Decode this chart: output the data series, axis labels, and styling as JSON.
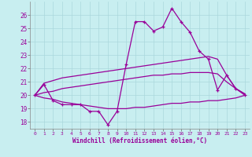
{
  "xlabel": "Windchill (Refroidissement éolien,°C)",
  "background_color": "#c8eef0",
  "line_color": "#990099",
  "grid_color": "#aad8dc",
  "x_hours": [
    0,
    1,
    2,
    3,
    4,
    5,
    6,
    7,
    8,
    9,
    10,
    11,
    12,
    13,
    14,
    15,
    16,
    17,
    18,
    19,
    20,
    21,
    22,
    23
  ],
  "windchill": [
    20.0,
    20.8,
    19.6,
    19.3,
    19.3,
    19.3,
    18.8,
    18.8,
    17.8,
    18.8,
    22.3,
    25.5,
    25.5,
    24.8,
    25.1,
    26.5,
    25.5,
    24.7,
    23.3,
    22.7,
    20.4,
    21.5,
    20.5,
    20.0
  ],
  "temp_max": [
    20.0,
    20.9,
    21.1,
    21.3,
    21.4,
    21.5,
    21.6,
    21.7,
    21.8,
    21.9,
    22.0,
    22.1,
    22.2,
    22.3,
    22.4,
    22.5,
    22.6,
    22.7,
    22.8,
    22.9,
    22.7,
    21.5,
    20.5,
    20.1
  ],
  "temp_avg": [
    20.0,
    20.2,
    20.3,
    20.5,
    20.6,
    20.7,
    20.8,
    20.9,
    21.0,
    21.1,
    21.2,
    21.3,
    21.4,
    21.5,
    21.5,
    21.6,
    21.6,
    21.7,
    21.7,
    21.7,
    21.6,
    21.0,
    20.5,
    20.1
  ],
  "temp_min": [
    20.0,
    19.8,
    19.7,
    19.5,
    19.4,
    19.3,
    19.2,
    19.1,
    19.0,
    19.0,
    19.0,
    19.1,
    19.1,
    19.2,
    19.3,
    19.4,
    19.4,
    19.5,
    19.5,
    19.6,
    19.6,
    19.7,
    19.8,
    20.0
  ],
  "ylim": [
    17.5,
    27.0
  ],
  "yticks": [
    18,
    19,
    20,
    21,
    22,
    23,
    24,
    25,
    26
  ],
  "xlim": [
    -0.5,
    23.5
  ],
  "xticks": [
    0,
    1,
    2,
    3,
    4,
    5,
    6,
    7,
    8,
    9,
    10,
    11,
    12,
    13,
    14,
    15,
    16,
    17,
    18,
    19,
    20,
    21,
    22,
    23
  ]
}
